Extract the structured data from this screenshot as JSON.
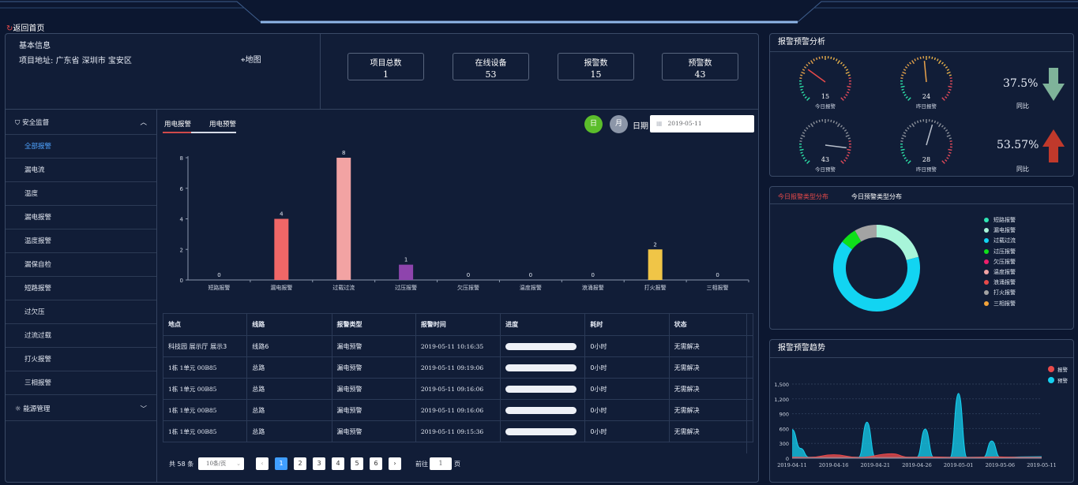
{
  "header": {
    "back_label": "返回首页"
  },
  "basic_info": {
    "title": "基本信息",
    "address_label": "项目地址:",
    "address_value": "广东省 深圳市 宝安区",
    "map_label": "地图"
  },
  "stats": [
    {
      "label": "项目总数",
      "value": "1"
    },
    {
      "label": "在线设备",
      "value": "53"
    },
    {
      "label": "报警数",
      "value": "15"
    },
    {
      "label": "预警数",
      "value": "43"
    }
  ],
  "sidebar": {
    "section1": "安全监督",
    "items": [
      "全部报警",
      "漏电流",
      "温度",
      "漏电报警",
      "温度报警",
      "漏保自检",
      "短路报警",
      "过欠压",
      "过流过载",
      "打火报警",
      "三相报警"
    ],
    "active_index": 0,
    "section2": "能源管理"
  },
  "main": {
    "tabs": [
      "用电报警",
      "用电预警"
    ],
    "day_btn": "日",
    "month_btn": "月",
    "date_label": "日期",
    "date_value": "2019-05-11"
  },
  "chart_data": [
    {
      "type": "bar",
      "categories": [
        "短路报警",
        "漏电报警",
        "过载过流",
        "过压报警",
        "欠压报警",
        "温度报警",
        "浪涌报警",
        "打火报警",
        "三相报警"
      ],
      "values": [
        0,
        4,
        8,
        1,
        0,
        0,
        0,
        2,
        0
      ],
      "colors": [
        "#8fb0d9",
        "#f06767",
        "#f2a3a3",
        "#8e44ad",
        "#8fb0d9",
        "#8fb0d9",
        "#8fb0d9",
        "#f0c547",
        "#8fb0d9"
      ],
      "yticks": [
        0,
        2,
        4,
        6,
        8
      ],
      "ylim": [
        0,
        8
      ]
    },
    {
      "type": "pie",
      "categories": [
        "短路报警",
        "漏电报警",
        "过载过流",
        "过压报警",
        "欠压报警",
        "温度报警",
        "浪涌报警",
        "打火报警",
        "三相报警"
      ],
      "colors": [
        "#2ee6b4",
        "#a8f5d9",
        "#12d4f2",
        "#0fe01a",
        "#ee1f6b",
        "#f2a3a3",
        "#e84a4a",
        "#a3a3a3",
        "#f2a33a"
      ],
      "values": [
        0,
        10,
        31,
        3,
        0,
        0,
        0,
        4,
        0
      ]
    },
    {
      "type": "area",
      "legend": [
        "报警",
        "预警"
      ],
      "colors": [
        "#e84a4a",
        "#15d0f0"
      ],
      "x": [
        "2019-04-11",
        "2019-04-16",
        "2019-04-21",
        "2019-04-26",
        "2019-05-01",
        "2019-05-06",
        "2019-05-11"
      ],
      "yticks": [
        "0",
        "300",
        "600",
        "900",
        "1,200",
        "1,500"
      ],
      "ylim": [
        0,
        1500
      ],
      "series": [
        {
          "name": "报警",
          "points": [
            [
              0,
              20
            ],
            [
              2,
              15
            ],
            [
              5,
              70
            ],
            [
              8,
              15
            ],
            [
              12,
              90
            ],
            [
              14,
              20
            ],
            [
              17,
              25
            ],
            [
              20,
              15
            ],
            [
              25,
              25
            ],
            [
              28,
              15
            ],
            [
              30,
              15
            ]
          ]
        },
        {
          "name": "预警",
          "points": [
            [
              0,
              580
            ],
            [
              1,
              200
            ],
            [
              2,
              20
            ],
            [
              8,
              20
            ],
            [
              9,
              730
            ],
            [
              10,
              20
            ],
            [
              15,
              20
            ],
            [
              16,
              590
            ],
            [
              17,
              20
            ],
            [
              19,
              20
            ],
            [
              20,
              1310
            ],
            [
              21,
              20
            ],
            [
              23,
              20
            ],
            [
              24,
              350
            ],
            [
              25,
              20
            ],
            [
              30,
              30
            ]
          ]
        }
      ]
    }
  ],
  "table": {
    "headers": [
      "地点",
      "线路",
      "报警类型",
      "报警时间",
      "进度",
      "耗时",
      "状态"
    ],
    "rows": [
      [
        "科技园 展示厅 展示3",
        "线路6",
        "漏电预警",
        "2019-05-11 10:16:35",
        "",
        "0小时",
        "无需解决"
      ],
      [
        "1栋 1单元 00B85",
        "总路",
        "漏电预警",
        "2019-05-11 09:19:06",
        "",
        "0小时",
        "无需解决"
      ],
      [
        "1栋 1单元 00B85",
        "总路",
        "漏电预警",
        "2019-05-11 09:16:06",
        "",
        "0小时",
        "无需解决"
      ],
      [
        "1栋 1单元 00B85",
        "总路",
        "漏电预警",
        "2019-05-11 09:16:06",
        "",
        "0小时",
        "无需解决"
      ],
      [
        "1栋 1单元 00B85",
        "总路",
        "漏电预警",
        "2019-05-11 09:15:36",
        "",
        "0小时",
        "无需解决"
      ]
    ]
  },
  "pagination": {
    "total": "共 58 条",
    "page_size": "10条/页",
    "pages": [
      "1",
      "2",
      "3",
      "4",
      "5",
      "6"
    ],
    "goto_label": "前往",
    "goto_value": "1",
    "page_suffix": "页"
  },
  "analysis": {
    "title": "报警预警分析",
    "gauges": [
      {
        "value": "15",
        "label": "今日报警",
        "max": 50
      },
      {
        "value": "24",
        "label": "昨日报警",
        "max": 50
      },
      {
        "value": "43",
        "label": "今日预警",
        "max": 50
      },
      {
        "value": "28",
        "label": "昨日预警",
        "max": 50
      }
    ],
    "compare": [
      {
        "pct": "37.5%",
        "label": "同比",
        "direction": "down",
        "color": "#7fb39a"
      },
      {
        "pct": "53.57%",
        "label": "同比",
        "direction": "up",
        "color": "#c0392b"
      }
    ]
  },
  "distribution": {
    "tabs": [
      "今日报警类型分布",
      "今日预警类型分布"
    ]
  },
  "trend": {
    "title": "报警预警趋势"
  }
}
